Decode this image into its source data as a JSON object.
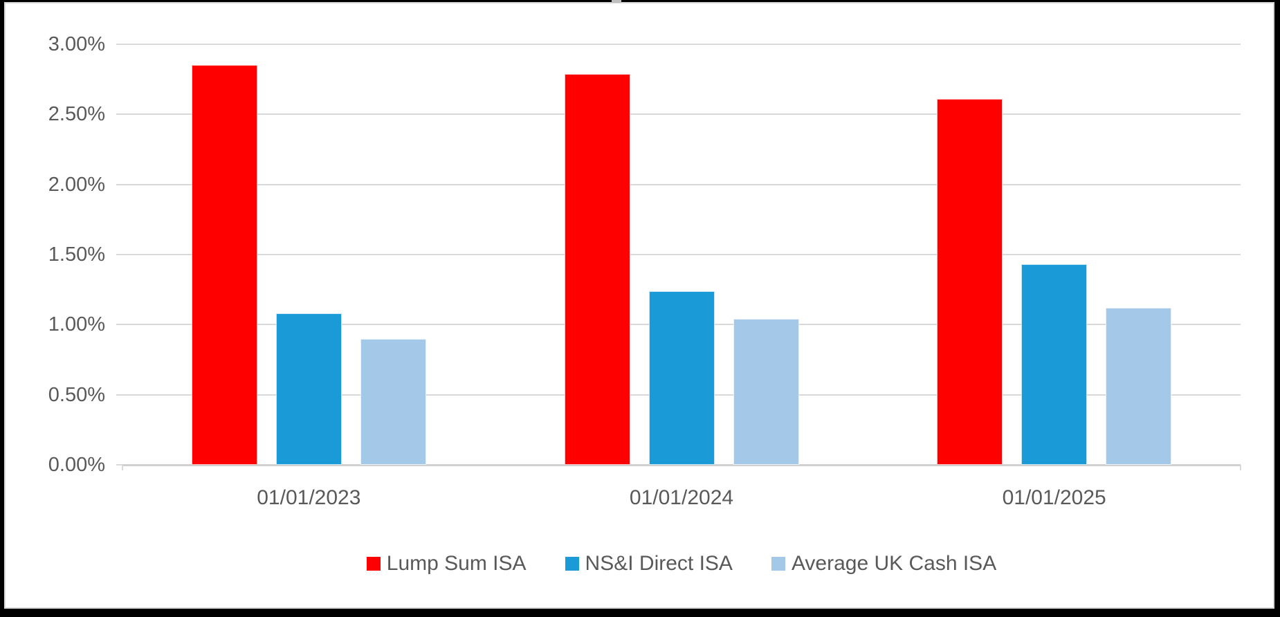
{
  "chart_data": {
    "type": "bar",
    "title": "",
    "categories": [
      "01/01/2023",
      "01/01/2024",
      "01/01/2025"
    ],
    "series": [
      {
        "name": "Lump Sum ISA",
        "color": "#FF0000",
        "values": [
          2.85,
          2.79,
          2.61
        ]
      },
      {
        "name": "NS&I Direct ISA",
        "color": "#1A9BD8",
        "values": [
          1.08,
          1.24,
          1.43
        ]
      },
      {
        "name": "Average UK Cash ISA",
        "color": "#A4C8E8",
        "values": [
          0.9,
          1.04,
          1.12
        ]
      }
    ],
    "y_axis": {
      "min": 0,
      "max": 3,
      "step": 0.5,
      "format": "percent",
      "tick_labels": [
        "3.00%",
        "2.50%",
        "2.00%",
        "1.50%",
        "1.00%",
        "0.50%",
        "0.00%"
      ]
    },
    "x_axis": {
      "tick_labels": [
        "01/01/2023",
        "01/01/2024",
        "01/01/2025"
      ]
    },
    "legend": {
      "position": "bottom",
      "entries": [
        "Lump Sum ISA",
        "NS&I Direct ISA",
        "Average UK Cash ISA"
      ]
    },
    "grid": true,
    "colors": {
      "gridline": "#D9D9D9",
      "axis_line": "#D0D0D0",
      "text": "#595959",
      "frame": "#000000",
      "background": "#FFFFFF"
    }
  }
}
